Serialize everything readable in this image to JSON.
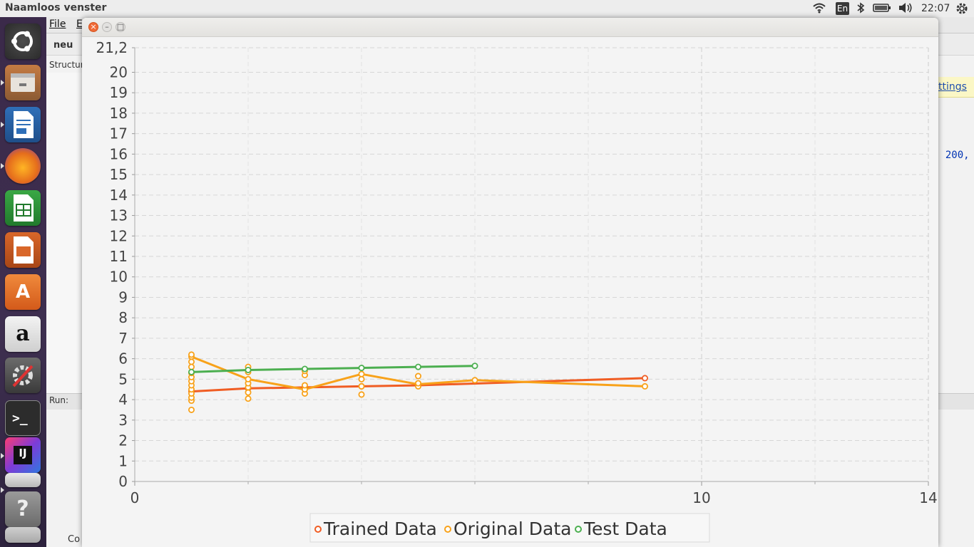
{
  "topbar": {
    "window_title": "Naamloos venster",
    "keyboard_layout": "En",
    "clock": "22:07"
  },
  "ide": {
    "menu_file": "File",
    "menu_edit": "E",
    "project_label": "neu",
    "structure_label": "Structur",
    "run_label": "Run:",
    "console_label": "Co",
    "settings_link": "ttings",
    "code_fragment": ": 200,"
  },
  "window": {
    "close_glyph": "×",
    "min_glyph": "–",
    "max_glyph": "□"
  },
  "colors": {
    "trained": "#f05d23",
    "original": "#f8a21a",
    "test": "#4caf50"
  },
  "chart_data": {
    "type": "line",
    "xlim": [
      0,
      14
    ],
    "ylim": [
      0,
      21.2
    ],
    "x_ticks": [
      "0",
      "10",
      "14"
    ],
    "x_tick_values": [
      0,
      10,
      14
    ],
    "y_ticks": [
      "0",
      "1",
      "2",
      "3",
      "4",
      "5",
      "6",
      "7",
      "8",
      "9",
      "10",
      "11",
      "12",
      "13",
      "14",
      "15",
      "16",
      "17",
      "18",
      "19",
      "20",
      "21,2"
    ],
    "y_tick_values": [
      0,
      1,
      2,
      3,
      4,
      5,
      6,
      7,
      8,
      9,
      10,
      11,
      12,
      13,
      14,
      15,
      16,
      17,
      18,
      19,
      20,
      21.2
    ],
    "grid": true,
    "legend_position": "bottom",
    "series": [
      {
        "name": "Trained Data",
        "color": "#f05d23",
        "x": [
          1,
          2,
          3,
          4,
          5,
          9
        ],
        "y": [
          4.4,
          4.55,
          4.6,
          4.65,
          4.7,
          5.05
        ]
      },
      {
        "name": "Original Data",
        "color": "#f8a21a",
        "x": [
          1,
          1,
          1,
          1,
          1,
          1,
          1,
          1,
          1,
          1,
          1,
          1,
          1,
          2,
          2,
          2,
          2,
          2,
          2,
          2,
          3,
          3,
          3,
          3,
          3,
          4,
          4,
          4,
          4,
          5,
          5,
          5,
          6,
          9
        ],
        "y": [
          3.5,
          3.95,
          4.1,
          4.3,
          4.5,
          4.7,
          4.9,
          5.1,
          5.3,
          5.6,
          5.85,
          6.1,
          6.2,
          4.05,
          4.35,
          4.6,
          4.8,
          5.0,
          5.35,
          5.6,
          4.3,
          4.5,
          4.7,
          5.2,
          5.4,
          4.25,
          4.65,
          5.0,
          5.25,
          4.65,
          4.8,
          5.15,
          4.95,
          4.65
        ]
      },
      {
        "name": "Test Data",
        "color": "#4caf50",
        "x": [
          1,
          2,
          3,
          4,
          5,
          6
        ],
        "y": [
          5.35,
          5.45,
          5.5,
          5.55,
          5.6,
          5.65
        ]
      }
    ],
    "original_line_x": [
      1,
      2,
      3,
      4,
      5,
      6,
      9
    ],
    "original_line_y": [
      6.1,
      5.0,
      4.5,
      5.25,
      4.75,
      4.95,
      4.65
    ]
  }
}
